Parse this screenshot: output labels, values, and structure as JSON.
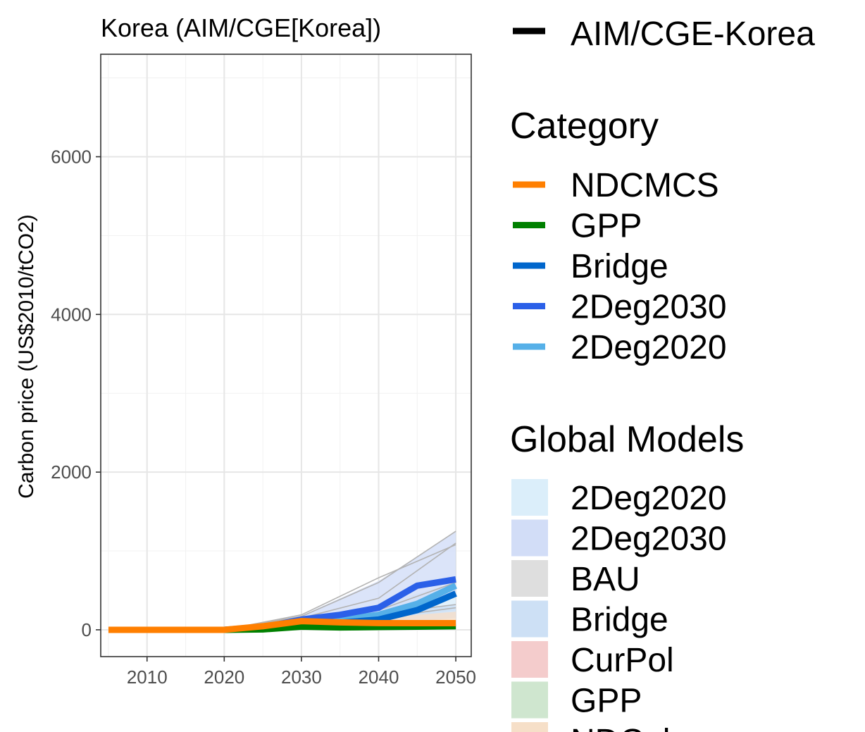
{
  "chart_data": {
    "type": "line",
    "title": "Korea (AIM/CGE[Korea])",
    "xlabel": "",
    "ylabel": "Carbon price (US$2010/tCO2)",
    "xlim": [
      2004,
      2052
    ],
    "ylim": [
      -340,
      7300
    ],
    "x_ticks": [
      2010,
      2020,
      2030,
      2040,
      2050
    ],
    "y_ticks": [
      0,
      2000,
      4000,
      6000
    ],
    "grid": true,
    "legend_position": "right",
    "model_legend": {
      "label": "AIM/CGE-Korea",
      "color": "#000000"
    },
    "category_legend_title": "Category",
    "global_models_legend_title": "Global Models",
    "series": [
      {
        "name": "NDCMCS",
        "color": "#ff7f00",
        "x": [
          2005,
          2010,
          2015,
          2020,
          2025,
          2030,
          2035,
          2040,
          2045,
          2050
        ],
        "values": [
          0,
          0,
          0,
          0,
          45,
          110,
          95,
          85,
          85,
          85
        ]
      },
      {
        "name": "GPP",
        "color": "#008000",
        "x": [
          2020,
          2025,
          2030,
          2035,
          2040,
          2045,
          2050
        ],
        "values": [
          0,
          5,
          40,
          30,
          35,
          40,
          45
        ]
      },
      {
        "name": "Bridge",
        "color": "#0066cc",
        "x": [
          2020,
          2025,
          2030,
          2035,
          2040,
          2045,
          2050
        ],
        "values": [
          0,
          20,
          70,
          90,
          130,
          250,
          460
        ]
      },
      {
        "name": "2Deg2030",
        "color": "#2b60e8",
        "x": [
          2020,
          2025,
          2030,
          2035,
          2040,
          2045,
          2050
        ],
        "values": [
          0,
          30,
          130,
          190,
          280,
          560,
          640
        ]
      },
      {
        "name": "2Deg2020",
        "color": "#56b0e8",
        "x": [
          2020,
          2025,
          2030,
          2035,
          2040,
          2045,
          2050
        ],
        "values": [
          0,
          40,
          90,
          130,
          190,
          330,
          560
        ]
      }
    ],
    "global_models": [
      {
        "name": "2Deg2020",
        "color": "#dbeefa",
        "x": [
          2020,
          2030,
          2040,
          2050
        ],
        "low": [
          0,
          30,
          100,
          250
        ],
        "high": [
          0,
          140,
          320,
          600
        ]
      },
      {
        "name": "2Deg2030",
        "color": "#d2ddf7",
        "x": [
          2020,
          2030,
          2040,
          2050
        ],
        "low": [
          0,
          60,
          200,
          450
        ],
        "high": [
          0,
          180,
          620,
          1240
        ]
      },
      {
        "name": "BAU",
        "color": "#dedede",
        "x": [
          2020,
          2030,
          2040,
          2050
        ],
        "low": [
          0,
          0,
          10,
          20
        ],
        "high": [
          0,
          20,
          40,
          60
        ]
      },
      {
        "name": "Bridge",
        "color": "#cde0f5",
        "x": [
          2020,
          2030,
          2040,
          2050
        ],
        "low": [
          0,
          20,
          60,
          150
        ],
        "high": [
          0,
          90,
          200,
          330
        ]
      },
      {
        "name": "CurPol",
        "color": "#f4cccc",
        "x": [
          2020,
          2030,
          2040,
          2050
        ],
        "low": [
          0,
          0,
          10,
          15
        ],
        "high": [
          0,
          15,
          30,
          45
        ]
      },
      {
        "name": "GPP",
        "color": "#cfe6cf",
        "x": [
          2020,
          2030,
          2040,
          2050
        ],
        "low": [
          0,
          5,
          15,
          25
        ],
        "high": [
          0,
          35,
          60,
          80
        ]
      },
      {
        "name": "NDCplus",
        "color": "#f6dfc8",
        "x": [
          2020,
          2030,
          2040,
          2050
        ],
        "low": [
          0,
          10,
          40,
          80
        ],
        "high": [
          0,
          60,
          150,
          230
        ]
      }
    ],
    "global_model_lines": [
      {
        "x": [
          2020,
          2030,
          2040,
          2050
        ],
        "values": [
          0,
          170,
          600,
          1250
        ]
      },
      {
        "x": [
          2020,
          2030,
          2040,
          2050
        ],
        "values": [
          0,
          150,
          400,
          1100
        ]
      },
      {
        "x": [
          2020,
          2030,
          2040,
          2050
        ],
        "values": [
          0,
          190,
          660,
          1080
        ]
      },
      {
        "x": [
          2020,
          2030,
          2040,
          2050
        ],
        "values": [
          0,
          100,
          250,
          600
        ]
      },
      {
        "x": [
          2020,
          2030,
          2040,
          2050
        ],
        "values": [
          0,
          80,
          200,
          320
        ]
      },
      {
        "x": [
          2020,
          2030,
          2040,
          2050
        ],
        "values": [
          0,
          50,
          150,
          280
        ]
      }
    ]
  }
}
